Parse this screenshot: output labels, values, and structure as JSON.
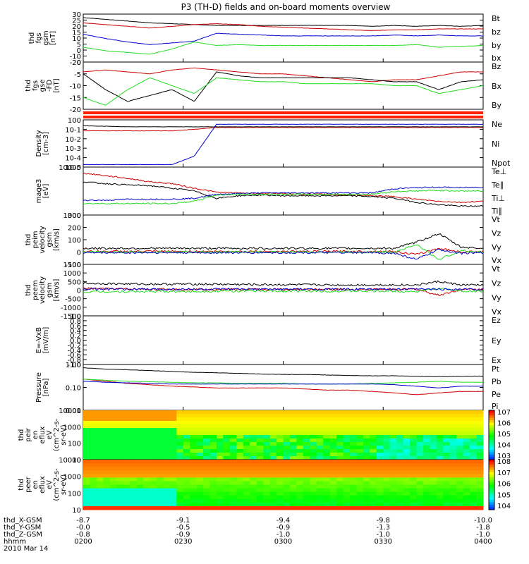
{
  "title": "P3 (TH-D) fields and on-board moments overview",
  "colors": {
    "black": "#000000",
    "red": "#cc0000",
    "green": "#22dd22",
    "blue": "#0000cc",
    "marker": "#ff2000"
  },
  "chart_data": [
    {
      "type": "line",
      "panel": "fgs_gsm",
      "ylabel": [
        "thd",
        "fgs",
        "gsm",
        "[nT]"
      ],
      "ylim": [
        -25,
        30
      ],
      "yticks": [
        30,
        25,
        20,
        15,
        10,
        5,
        0,
        -10,
        -20
      ],
      "series": [
        {
          "name": "Bt",
          "color": "black",
          "values": [
            26,
            24,
            22,
            20,
            19,
            18,
            17,
            17,
            17,
            17,
            17,
            17,
            17,
            16,
            17,
            16,
            17,
            16,
            17
          ]
        },
        {
          "name": "bz",
          "color": "red",
          "values": [
            20,
            18,
            16,
            14,
            16,
            18,
            19,
            18,
            16,
            15,
            14,
            13,
            12,
            11,
            12,
            12,
            13,
            13,
            13
          ]
        },
        {
          "name": "by",
          "color": "green",
          "values": [
            -8,
            -12,
            -14,
            -16,
            -10,
            -2,
            -6,
            -5,
            -6,
            -6,
            -6,
            -6,
            -6,
            -6,
            -6,
            -5,
            -8,
            -7,
            -6
          ]
        },
        {
          "name": "bx",
          "color": "blue",
          "values": [
            7,
            2,
            -2,
            -5,
            -3,
            -1,
            8,
            7,
            6,
            5,
            5,
            5,
            5,
            5,
            6,
            5,
            6,
            5,
            5
          ]
        }
      ]
    },
    {
      "type": "line",
      "panel": "fgs_gse",
      "ylabel": [
        "thd",
        "fgs",
        "gse",
        "-FD",
        "[nT]"
      ],
      "ylim": [
        -22,
        2
      ],
      "yticks": [
        0,
        -5,
        -10,
        -15,
        -20
      ],
      "series": [
        {
          "name": "Bz",
          "color": "red",
          "values": [
            -3,
            -2,
            -3,
            -4,
            -2,
            -1,
            -2,
            -3,
            -4,
            -4,
            -5,
            -6,
            -7,
            -8,
            -7,
            -7,
            -5,
            -3,
            -3
          ]
        },
        {
          "name": "Bx",
          "color": "black",
          "values": [
            -4,
            -12,
            -18,
            -15,
            -12,
            -18,
            -3,
            -5,
            -6,
            -6,
            -6,
            -6,
            -6,
            -7,
            -8,
            -8,
            -12,
            -8,
            -7
          ]
        },
        {
          "name": "By",
          "color": "green",
          "values": [
            -16,
            -20,
            -12,
            -6,
            -10,
            -14,
            -6,
            -7,
            -8,
            -8,
            -9,
            -9,
            -9,
            -9,
            -10,
            -10,
            -14,
            -12,
            -10
          ]
        }
      ]
    },
    {
      "type": "line",
      "panel": "density",
      "log": true,
      "ylabel": [
        "Density",
        "[cm-3]"
      ],
      "yticks": [
        "10^0",
        "10^-1",
        "10^-2",
        "10^-3",
        "10^-4",
        "10^-5"
      ],
      "series": [
        {
          "name": "Ne",
          "color": "red",
          "values": [
            0.1,
            0.1,
            0.1,
            0.1,
            0.1,
            0.15,
            0.25,
            0.25,
            0.25,
            0.25,
            0.25,
            0.25,
            0.25,
            0.25,
            0.25,
            0.25,
            0.25,
            0.25,
            0.25
          ]
        },
        {
          "name": "Ni",
          "color": "black",
          "values": [
            0.4,
            0.35,
            0.3,
            0.3,
            0.3,
            0.3,
            0.3,
            0.3,
            0.3,
            0.3,
            0.3,
            0.3,
            0.3,
            0.3,
            0.3,
            0.3,
            0.3,
            0.3,
            0.3
          ]
        },
        {
          "name": "Npot",
          "color": "blue",
          "values": [
            1e-05,
            1e-05,
            1e-05,
            1e-05,
            1e-05,
            0.0001,
            0.6,
            0.6,
            0.6,
            0.6,
            0.6,
            0.6,
            0.6,
            0.6,
            0.6,
            0.6,
            0.6,
            0.6,
            0.6
          ]
        }
      ]
    },
    {
      "type": "line",
      "panel": "temperature",
      "log": true,
      "ylabel": [
        "mage3",
        "[eV]"
      ],
      "yticks": [
        "10000",
        "1000"
      ],
      "series": [
        {
          "name": "Te⊥",
          "color": "red",
          "values": [
            8000,
            7000,
            6000,
            5000,
            4500,
            3500,
            2800,
            2700,
            2600,
            2600,
            2500,
            2500,
            2400,
            2300,
            2200,
            1900,
            1700,
            1600,
            1700
          ]
        },
        {
          "name": "Te∥",
          "color": "black",
          "values": [
            5000,
            4500,
            4200,
            4000,
            3500,
            3000,
            2000,
            2300,
            2400,
            2300,
            2300,
            2300,
            2300,
            2200,
            2000,
            1600,
            1400,
            1300,
            1300
          ]
        },
        {
          "name": "Ti⊥",
          "color": "blue",
          "values": [
            1800,
            1800,
            1900,
            1900,
            1900,
            2000,
            2500,
            2600,
            2700,
            2700,
            2700,
            2700,
            2700,
            2700,
            3400,
            3600,
            3700,
            3600,
            3700
          ]
        },
        {
          "name": "Ti∥",
          "color": "green",
          "values": [
            1500,
            1500,
            1500,
            1500,
            1500,
            1700,
            2400,
            2500,
            2500,
            2500,
            2500,
            2500,
            2500,
            2500,
            2900,
            3000,
            3100,
            3000,
            3000
          ]
        }
      ]
    },
    {
      "type": "line",
      "panel": "peim_velocity",
      "ylabel": [
        "thd",
        "peim",
        "velocity",
        "gsm",
        "[km/s]"
      ],
      "ylim": [
        -100,
        300
      ],
      "yticks": [
        300,
        200,
        100,
        0,
        -100
      ],
      "series": [
        {
          "name": "Vt",
          "color": "black",
          "values": [
            30,
            30,
            30,
            30,
            30,
            30,
            30,
            30,
            30,
            30,
            30,
            30,
            30,
            30,
            30,
            80,
            150,
            40,
            30
          ]
        },
        {
          "name": "Vz",
          "color": "red",
          "values": [
            5,
            5,
            5,
            5,
            5,
            5,
            5,
            5,
            5,
            5,
            5,
            5,
            5,
            5,
            5,
            -20,
            30,
            0,
            5
          ]
        },
        {
          "name": "Vy",
          "color": "green",
          "values": [
            0,
            0,
            0,
            0,
            0,
            0,
            0,
            0,
            0,
            0,
            0,
            0,
            0,
            0,
            0,
            60,
            -60,
            10,
            0
          ]
        },
        {
          "name": "Vx",
          "color": "blue",
          "values": [
            -5,
            -5,
            -5,
            -5,
            -5,
            -5,
            -5,
            -5,
            -5,
            -5,
            -5,
            -5,
            -5,
            -5,
            -10,
            -60,
            20,
            -10,
            -5
          ]
        }
      ]
    },
    {
      "type": "line",
      "panel": "peem_velocity",
      "ylabel": [
        "thd",
        "peem",
        "velocity",
        "gsm",
        "[km/s]"
      ],
      "ylim": [
        -1500,
        1500
      ],
      "yticks": [
        1500,
        1000,
        500,
        0,
        -500,
        -1000,
        -1500
      ],
      "series": [
        {
          "name": "Vt",
          "color": "black",
          "values": [
            400,
            380,
            360,
            350,
            350,
            350,
            340,
            330,
            320,
            320,
            310,
            300,
            300,
            300,
            300,
            300,
            500,
            300,
            300
          ]
        },
        {
          "name": "Vz",
          "color": "red",
          "values": [
            100,
            80,
            60,
            50,
            50,
            50,
            50,
            40,
            40,
            40,
            40,
            40,
            40,
            40,
            40,
            50,
            -300,
            40,
            40
          ]
        },
        {
          "name": "Vy",
          "color": "green",
          "values": [
            -100,
            -90,
            -80,
            -80,
            -80,
            -80,
            -60,
            -60,
            -60,
            -60,
            -60,
            -60,
            -60,
            -60,
            -60,
            -80,
            100,
            -60,
            -60
          ]
        },
        {
          "name": "Vx",
          "color": "blue",
          "values": [
            50,
            50,
            50,
            50,
            50,
            50,
            50,
            50,
            50,
            50,
            50,
            50,
            50,
            50,
            50,
            50,
            50,
            50,
            50
          ]
        }
      ]
    },
    {
      "type": "line",
      "panel": "e_vxb",
      "ylabel": [
        "E=-VxB",
        "[mV/m]"
      ],
      "ylim": [
        -1,
        1
      ],
      "yticks": [
        "1.0",
        "0.8",
        "0.6",
        "0.4",
        "0.2",
        "0.0",
        "-0.2",
        "-0.4",
        "-0.6",
        "-0.8",
        "-1.0"
      ],
      "series": [
        {
          "name": "Ez",
          "color": "red",
          "values": []
        },
        {
          "name": "Ey",
          "color": "green",
          "values": []
        },
        {
          "name": "Ex",
          "color": "blue",
          "values": []
        }
      ]
    },
    {
      "type": "line",
      "panel": "pressure",
      "log": true,
      "ylabel": [
        "Pressure",
        "[nPa]"
      ],
      "yticks": [
        "1.00",
        "0.10",
        "0.01"
      ],
      "series": [
        {
          "name": "Pt",
          "color": "black",
          "values": [
            0.8,
            0.7,
            0.65,
            0.6,
            0.55,
            0.5,
            0.48,
            0.45,
            0.42,
            0.4,
            0.4,
            0.38,
            0.36,
            0.35,
            0.35,
            0.33,
            0.32,
            0.33,
            0.34
          ]
        },
        {
          "name": "Pb",
          "color": "red",
          "values": [
            0.25,
            0.2,
            0.16,
            0.14,
            0.12,
            0.11,
            0.1,
            0.1,
            0.1,
            0.1,
            0.09,
            0.08,
            0.08,
            0.07,
            0.06,
            0.05,
            0.06,
            0.07,
            0.07
          ]
        },
        {
          "name": "Pe",
          "color": "green",
          "values": [
            0.25,
            0.22,
            0.2,
            0.19,
            0.18,
            0.17,
            0.17,
            0.16,
            0.16,
            0.16,
            0.15,
            0.15,
            0.15,
            0.16,
            0.17,
            0.18,
            0.2,
            0.18,
            0.18
          ]
        },
        {
          "name": "Pi",
          "color": "blue",
          "values": [
            0.2,
            0.18,
            0.17,
            0.16,
            0.15,
            0.15,
            0.15,
            0.15,
            0.15,
            0.15,
            0.15,
            0.15,
            0.15,
            0.15,
            0.14,
            0.12,
            0.1,
            0.12,
            0.12
          ]
        }
      ]
    },
    {
      "type": "heatmap",
      "panel": "peir_en_eflux",
      "ylabel": [
        "thd",
        "peir",
        "en",
        "eflux",
        "eV",
        "(cm^2-s-",
        "sr-eV)"
      ],
      "yticks": [
        "10000",
        "1000",
        "100",
        "10"
      ],
      "colorbar": {
        "ticks": [
          "10^7",
          "10^6",
          "10^5",
          "10^4",
          "10^3"
        ]
      }
    },
    {
      "type": "heatmap",
      "panel": "peer_en_eflux",
      "ylabel": [
        "thd",
        "peer",
        "en",
        "eflux",
        "eV",
        "(cm^2-s-",
        "sr-eV)"
      ],
      "yticks": [
        "10000",
        "1000",
        "100",
        "10"
      ],
      "colorbar": {
        "ticks": [
          "10^8",
          "10^7",
          "10^6",
          "10^5",
          "10^4"
        ]
      }
    }
  ],
  "xaxis": {
    "rows": [
      {
        "label": "thd_X-GSM",
        "values": [
          "-8.7",
          "-9.1",
          "-9.4",
          "-9.8",
          "-10.0"
        ]
      },
      {
        "label": "thd_Y-GSM",
        "values": [
          "-0.0",
          "-0.5",
          "-0.9",
          "-1.3",
          "-1.8"
        ]
      },
      {
        "label": "thd_Z-GSM",
        "values": [
          "-0.8",
          "-0.9",
          "-1.0",
          "-1.0",
          "-1.0"
        ]
      },
      {
        "label": "hhmm",
        "values": [
          "0200",
          "0230",
          "0300",
          "0330",
          "0400"
        ]
      }
    ],
    "date": "2010 Mar 14"
  },
  "legend": {
    "p1": [
      "Bt",
      "bz",
      "by",
      "bx"
    ],
    "p2": [
      "Bz",
      "Bx",
      "By"
    ],
    "p3": [
      "Ne",
      "Ni",
      "Npot"
    ],
    "p4": [
      "Te⊥",
      "Te∥",
      "Ti⊥",
      "Ti∥"
    ],
    "p5": [
      "Vt",
      "Vz",
      "Vy",
      "Vx"
    ],
    "p6": [
      "Vt",
      "Vz",
      "Vy",
      "Vx"
    ],
    "p7": [
      "Ez",
      "Ey",
      "Ex"
    ],
    "p8": [
      "Pt",
      "Pb",
      "Pe",
      "Pi"
    ]
  }
}
